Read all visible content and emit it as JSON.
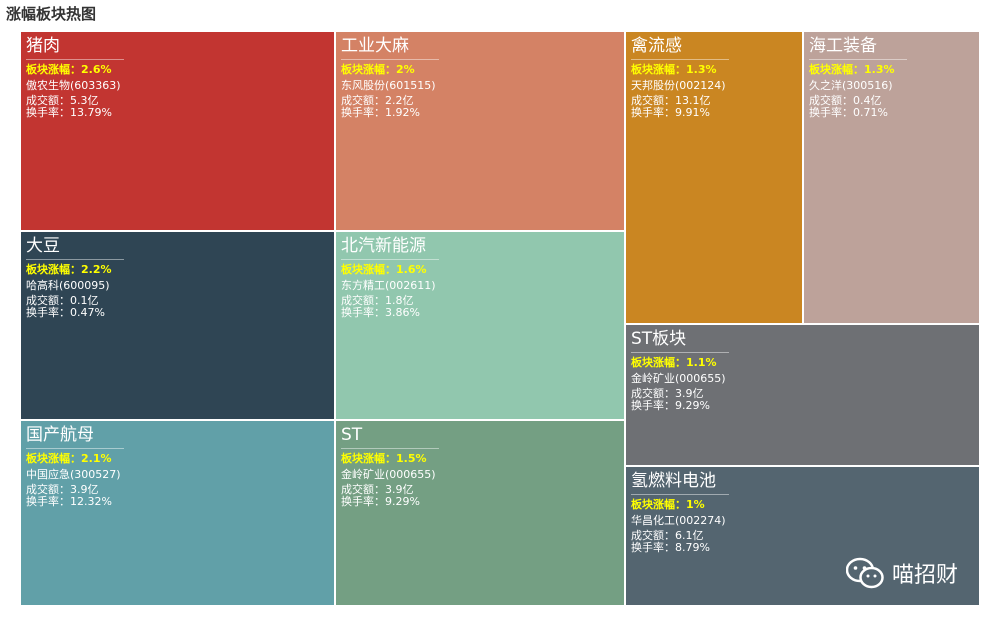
{
  "title": "涨幅板块热图",
  "labels": {
    "change": "板块涨幅：",
    "turnover": "成交额：",
    "rate": "换手率："
  },
  "watermark": {
    "text": "喵招财",
    "icon": "wechat-icon"
  },
  "chart_data": {
    "type": "treemap",
    "title": "涨幅板块热图",
    "items": [
      {
        "name": "猪肉",
        "change": "2.6%",
        "stock": "傲农生物(603363)",
        "turnover": "5.3亿",
        "rate": "13.79%",
        "color": "#c23531"
      },
      {
        "name": "工业大麻",
        "change": "2%",
        "stock": "东风股份(601515)",
        "turnover": "2.2亿",
        "rate": "1.92%",
        "color": "#d48265"
      },
      {
        "name": "禽流感",
        "change": "1.3%",
        "stock": "天邦股份(002124)",
        "turnover": "13.1亿",
        "rate": "9.91%",
        "color": "#ca8622"
      },
      {
        "name": "海工装备",
        "change": "1.3%",
        "stock": "久之洋(300516)",
        "turnover": "0.4亿",
        "rate": "0.71%",
        "color": "#bda29a"
      },
      {
        "name": "大豆",
        "change": "2.2%",
        "stock": "哈高科(600095)",
        "turnover": "0.1亿",
        "rate": "0.47%",
        "color": "#2f4554"
      },
      {
        "name": "北汽新能源",
        "change": "1.6%",
        "stock": "东方精工(002611)",
        "turnover": "1.8亿",
        "rate": "3.86%",
        "color": "#91c7ae"
      },
      {
        "name": "ST板块",
        "change": "1.1%",
        "stock": "金岭矿业(000655)",
        "turnover": "3.9亿",
        "rate": "9.29%",
        "color": "#6e7074"
      },
      {
        "name": "国产航母",
        "change": "2.1%",
        "stock": "中国应急(300527)",
        "turnover": "3.9亿",
        "rate": "12.32%",
        "color": "#61a0a8"
      },
      {
        "name": "ST",
        "change": "1.5%",
        "stock": "金岭矿业(000655)",
        "turnover": "3.9亿",
        "rate": "9.29%",
        "color": "#749f83"
      },
      {
        "name": "氢燃料电池",
        "change": "1%",
        "stock": "华昌化工(002274)",
        "turnover": "6.1亿",
        "rate": "8.79%",
        "color": "#546570"
      }
    ]
  }
}
